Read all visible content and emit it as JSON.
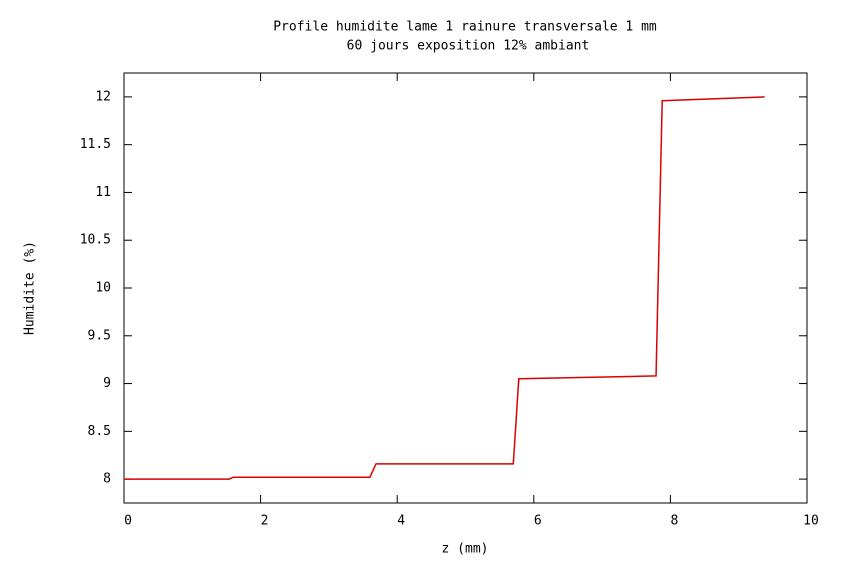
{
  "chart_data": {
    "type": "line",
    "title": "Profile humidite lame 1 rainure transversale 1 mm",
    "subtitle": "60 jours exposition 12% ambiant",
    "x_label": "z (mm)",
    "y_label": "Humidite (%)",
    "x": [
      0,
      1.54,
      1.6,
      3.6,
      3.69,
      5.7,
      5.78,
      7.79,
      7.88,
      9.38
    ],
    "series": [
      {
        "color": "#dd0000",
        "values": [
          8,
          8,
          8.02,
          8.02,
          8.16,
          8.16,
          9.05,
          9.08,
          11.96,
          12.0
        ]
      }
    ],
    "xlim": [
      0,
      10
    ],
    "xticks": [
      0,
      2,
      4,
      6,
      8,
      10
    ],
    "ylim": [
      7.75,
      12.25
    ],
    "yticks": [
      8,
      8.5,
      9,
      9.5,
      10,
      10.5,
      11,
      11.5,
      12
    ]
  }
}
